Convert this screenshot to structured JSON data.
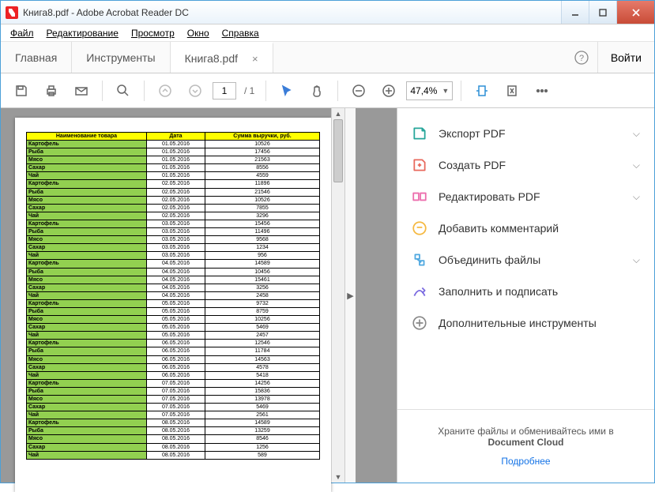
{
  "window": {
    "title": "Книга8.pdf - Adobe Acrobat Reader DC"
  },
  "menu": [
    "Файл",
    "Редактирование",
    "Просмотр",
    "Окно",
    "Справка"
  ],
  "tabs": {
    "home": "Главная",
    "tools": "Инструменты",
    "doc": "Книга8.pdf",
    "login": "Войти"
  },
  "toolbar": {
    "page_current": "1",
    "page_total": "1",
    "zoom": "47,4%"
  },
  "rpanel": {
    "items": [
      {
        "label": "Экспорт PDF",
        "color": "#26a69a",
        "expand": true
      },
      {
        "label": "Создать PDF",
        "color": "#e8695d",
        "expand": true
      },
      {
        "label": "Редактировать PDF",
        "color": "#ec6ead",
        "expand": true
      },
      {
        "label": "Добавить комментарий",
        "color": "#f5b942",
        "expand": false
      },
      {
        "label": "Объединить файлы",
        "color": "#4fa8e0",
        "expand": true
      },
      {
        "label": "Заполнить и подписать",
        "color": "#7a6ae0",
        "expand": false
      },
      {
        "label": "Дополнительные инструменты",
        "color": "#888",
        "expand": false
      }
    ],
    "footer_line1": "Храните файлы и обменивайтесь ими в",
    "footer_line2": "Document Cloud",
    "footer_link": "Подробнее"
  },
  "table": {
    "headers": [
      "Наименование товара",
      "Дата",
      "Сумма выручки, руб."
    ],
    "rows": [
      [
        "Картофель",
        "01.05.2016",
        "10526"
      ],
      [
        "Рыба",
        "01.05.2016",
        "17456"
      ],
      [
        "Мясо",
        "01.05.2016",
        "21563"
      ],
      [
        "Сахар",
        "01.05.2016",
        "8556"
      ],
      [
        "Чай",
        "01.05.2016",
        "4559"
      ],
      [
        "Картофель",
        "02.05.2016",
        "11896"
      ],
      [
        "Рыба",
        "02.05.2016",
        "21546"
      ],
      [
        "Мясо",
        "02.05.2016",
        "10526"
      ],
      [
        "Сахар",
        "02.05.2016",
        "7855"
      ],
      [
        "Чай",
        "02.05.2016",
        "3296"
      ],
      [
        "Картофель",
        "03.05.2016",
        "15456"
      ],
      [
        "Рыба",
        "03.05.2016",
        "11496"
      ],
      [
        "Мясо",
        "03.05.2016",
        "9568"
      ],
      [
        "Сахар",
        "03.05.2016",
        "1234"
      ],
      [
        "Чай",
        "03.05.2016",
        "956"
      ],
      [
        "Картофель",
        "04.05.2016",
        "14589"
      ],
      [
        "Рыба",
        "04.05.2016",
        "10456"
      ],
      [
        "Мясо",
        "04.05.2016",
        "15461"
      ],
      [
        "Сахар",
        "04.05.2016",
        "3256"
      ],
      [
        "Чай",
        "04.05.2016",
        "2458"
      ],
      [
        "Картофель",
        "05.05.2016",
        "9732"
      ],
      [
        "Рыба",
        "05.05.2016",
        "8759"
      ],
      [
        "Мясо",
        "05.05.2016",
        "10256"
      ],
      [
        "Сахар",
        "05.05.2016",
        "5469"
      ],
      [
        "Чай",
        "05.05.2016",
        "2457"
      ],
      [
        "Картофель",
        "06.05.2016",
        "12546"
      ],
      [
        "Рыба",
        "06.05.2016",
        "11784"
      ],
      [
        "Мясо",
        "06.05.2016",
        "14563"
      ],
      [
        "Сахар",
        "06.05.2016",
        "4578"
      ],
      [
        "Чай",
        "06.05.2016",
        "5418"
      ],
      [
        "Картофель",
        "07.05.2016",
        "14256"
      ],
      [
        "Рыба",
        "07.05.2016",
        "15836"
      ],
      [
        "Мясо",
        "07.05.2016",
        "13978"
      ],
      [
        "Сахар",
        "07.05.2016",
        "5469"
      ],
      [
        "Чай",
        "07.05.2016",
        "2561"
      ],
      [
        "Картофель",
        "08.05.2016",
        "14589"
      ],
      [
        "Рыба",
        "08.05.2016",
        "13259"
      ],
      [
        "Мясо",
        "08.05.2016",
        "8546"
      ],
      [
        "Сахар",
        "08.05.2016",
        "1256"
      ],
      [
        "Чай",
        "08.05.2016",
        "589"
      ]
    ]
  }
}
